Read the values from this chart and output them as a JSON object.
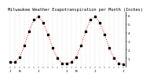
{
  "title": "Milwaukee Weather Evapotranspiration per Month (Inches)",
  "months_per_cycle": 12,
  "num_cycles": 2,
  "values": [
    0.55,
    0.55,
    1.1,
    2.5,
    4.2,
    5.5,
    5.9,
    5.2,
    3.8,
    2.2,
    1.0,
    0.4,
    0.4,
    0.55,
    1.1,
    2.5,
    4.2,
    5.5,
    5.9,
    5.2,
    3.8,
    2.2,
    1.0,
    0.4,
    0.3
  ],
  "line_color": "#ff0000",
  "marker_color": "#000000",
  "ylim": [
    0,
    6.5
  ],
  "ytick_vals": [
    1,
    2,
    3,
    4,
    5,
    6
  ],
  "ytick_labels": [
    "1",
    "2",
    "3",
    "4",
    "5",
    "6"
  ],
  "month_labels": [
    "J",
    "",
    "N",
    "",
    "",
    "",
    "J",
    "",
    "",
    "",
    "",
    "",
    "J",
    "",
    "N",
    "",
    "",
    "",
    "J",
    "",
    "",
    "",
    "",
    "",
    "J"
  ],
  "background_color": "#ffffff",
  "grid_color": "#bbbbbb",
  "title_fontsize": 3.8,
  "axis_fontsize": 3.2,
  "line_width": 0.7,
  "marker_size": 1.5
}
